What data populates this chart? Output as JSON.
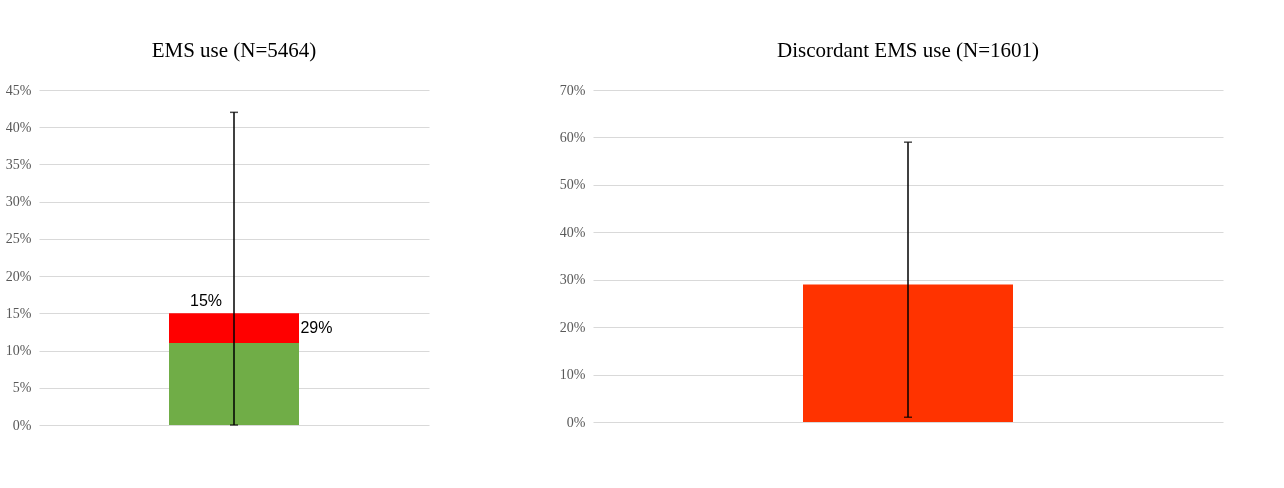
{
  "chart_data": [
    {
      "type": "bar",
      "title": "EMS use (N=5464)",
      "stacked": true,
      "categories": [
        null
      ],
      "series": [
        {
          "color": "#70ad47",
          "values": [
            11
          ]
        },
        {
          "color": "#ff0000",
          "values": [
            4
          ],
          "errors": [
            [
              0,
              42
            ]
          ]
        }
      ],
      "ylim": [
        0,
        45
      ],
      "yticks": [
        {
          "value": 0,
          "label": "0%"
        },
        {
          "value": 5,
          "label": "5%"
        },
        {
          "value": 10,
          "label": "10%"
        },
        {
          "value": 15,
          "label": "15%"
        },
        {
          "value": 20,
          "label": "20%"
        },
        {
          "value": 25,
          "label": "25%"
        },
        {
          "value": 30,
          "label": "30%"
        },
        {
          "value": 35,
          "label": "35%"
        },
        {
          "value": 40,
          "label": "40%"
        },
        {
          "value": 45,
          "label": "45%"
        }
      ],
      "grid": "y",
      "legend": false,
      "annotations": [
        "15%",
        "29%"
      ]
    },
    {
      "type": "bar",
      "title": "Discordant EMS use (N=1601)",
      "categories": [
        null
      ],
      "values": [
        29
      ],
      "color": "#ff3300",
      "errors": [
        [
          1,
          59
        ]
      ],
      "ylim": [
        0,
        70
      ],
      "yticks": [
        {
          "value": 0,
          "label": "0%"
        },
        {
          "value": 10,
          "label": "10%"
        },
        {
          "value": 20,
          "label": "20%"
        },
        {
          "value": 30,
          "label": "30%"
        },
        {
          "value": 40,
          "label": "40%"
        },
        {
          "value": 50,
          "label": "50%"
        },
        {
          "value": 60,
          "label": "60%"
        },
        {
          "value": 70,
          "label": "70%"
        }
      ],
      "grid": "y",
      "legend": false
    }
  ]
}
